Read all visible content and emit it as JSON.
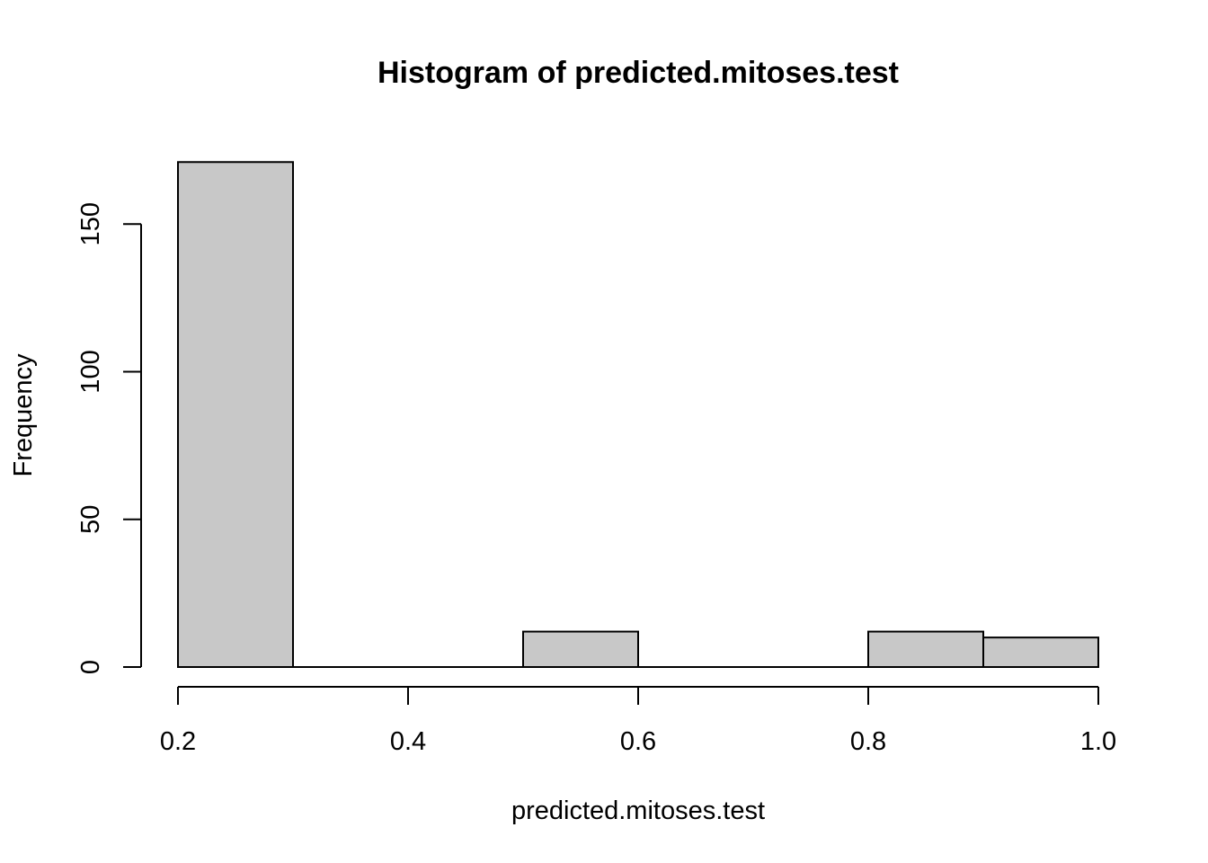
{
  "chart_data": {
    "type": "bar",
    "title": "Histogram of predicted.mitoses.test",
    "xlabel": "predicted.mitoses.test",
    "ylabel": "Frequency",
    "bins": [
      {
        "start": 0.2,
        "end": 0.3,
        "count": 171
      },
      {
        "start": 0.3,
        "end": 0.4,
        "count": 0
      },
      {
        "start": 0.4,
        "end": 0.5,
        "count": 0
      },
      {
        "start": 0.5,
        "end": 0.6,
        "count": 12
      },
      {
        "start": 0.6,
        "end": 0.7,
        "count": 0
      },
      {
        "start": 0.7,
        "end": 0.8,
        "count": 0
      },
      {
        "start": 0.8,
        "end": 0.9,
        "count": 12
      },
      {
        "start": 0.9,
        "end": 1.0,
        "count": 10
      }
    ],
    "x_ticks": [
      "0.2",
      "0.4",
      "0.6",
      "0.8",
      "1.0"
    ],
    "y_ticks": [
      "0",
      "50",
      "100",
      "150"
    ],
    "xlim": [
      0.2,
      1.0
    ],
    "ylim": [
      0,
      171
    ],
    "grid": false,
    "bar_color": "#c8c8c8"
  }
}
